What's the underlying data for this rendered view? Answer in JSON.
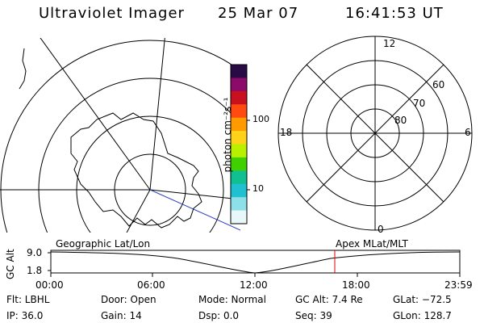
{
  "header": {
    "title": "Ultraviolet Imager",
    "date": "25 Mar 07",
    "time": "16:41:53 UT"
  },
  "colorbar": {
    "label": "photon cm⁻²s⁻¹",
    "ticks": [
      "100",
      "10"
    ],
    "scale": "log",
    "colors": [
      "#2a0a44",
      "#8b0a6a",
      "#c8101e",
      "#ff4a10",
      "#ff9a00",
      "#ffd21a",
      "#b8f000",
      "#40d000",
      "#10c090",
      "#20c0d0",
      "#8ee0e8",
      "#e8f8f8"
    ]
  },
  "polar_plot": {
    "labels": {
      "top": "12",
      "left": "18",
      "right": "6",
      "bottom": "0"
    },
    "rings": [
      "60",
      "70",
      "80"
    ]
  },
  "captions": {
    "left": "Geographic Lat/Lon",
    "right": "Apex MLat/MLT"
  },
  "timeline": {
    "axis_label": "GC Alt",
    "y_ticks": [
      "9.0",
      "1.8"
    ],
    "time_ticks": [
      "00:00",
      "06:00",
      "12:00",
      "18:00",
      "23:59"
    ],
    "current_time_marker": "16:41"
  },
  "status": {
    "filter": "Flt: LBHL",
    "door": "Door: Open",
    "mode": "Mode: Normal",
    "gc_alt": "GC Alt: 7.4 Re",
    "glat": "GLat: −72.5",
    "ip": "IP: 36.0",
    "gain": "Gain: 14",
    "dsp": "Dsp:     0.0",
    "seq": "Seq: 39",
    "glon": "GLon: 128.7"
  }
}
